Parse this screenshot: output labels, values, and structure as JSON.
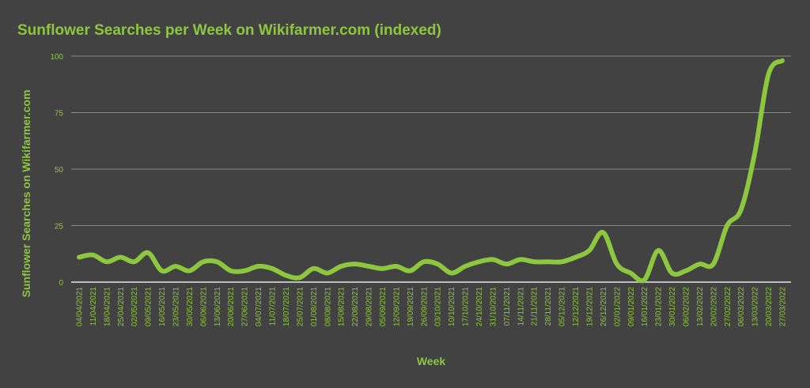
{
  "chart_data": {
    "type": "line",
    "title": "Sunflower Searches per Week on Wikifarmer.com (indexed)",
    "xlabel": "Week",
    "ylabel": "Sunflower Searches on Wikifarmer.com",
    "ylim": [
      0,
      100
    ],
    "yticks": [
      0,
      25,
      50,
      75,
      100
    ],
    "grid": true,
    "legend": "none",
    "color": "#8DC63F",
    "x": [
      "04/04/2021",
      "11/04/2021",
      "18/04/2021",
      "25/04/2021",
      "02/05/2021",
      "09/05/2021",
      "16/05/2021",
      "23/05/2021",
      "30/05/2021",
      "06/06/2021",
      "13/06/2021",
      "20/06/2021",
      "27/06/2021",
      "04/07/2021",
      "11/07/2021",
      "18/07/2021",
      "25/07/2021",
      "01/08/2021",
      "08/08/2021",
      "15/08/2021",
      "22/08/2021",
      "29/08/2021",
      "05/09/2021",
      "12/09/2021",
      "19/09/2021",
      "26/09/2021",
      "03/10/2021",
      "10/10/2021",
      "17/10/2021",
      "24/10/2021",
      "31/10/2021",
      "07/11/2021",
      "14/11/2021",
      "21/11/2021",
      "28/11/2021",
      "05/12/2021",
      "12/12/2021",
      "19/12/2021",
      "26/12/2021",
      "02/01/2022",
      "09/01/2022",
      "16/01/2022",
      "23/01/2022",
      "30/01/2022",
      "06/02/2022",
      "13/02/2022",
      "20/02/2022",
      "27/02/2022",
      "06/03/2022",
      "13/03/2022",
      "20/03/2022",
      "27/03/2022"
    ],
    "values": [
      11,
      12,
      9,
      11,
      9,
      13,
      5,
      7,
      5,
      9,
      9,
      5,
      5,
      7,
      6,
      3,
      2,
      6,
      4,
      7,
      8,
      7,
      6,
      7,
      5,
      9,
      8,
      4,
      7,
      9,
      10,
      8,
      10,
      9,
      9,
      9,
      11,
      14,
      22,
      8,
      4,
      1,
      14,
      4,
      5,
      8,
      8,
      25,
      32,
      57,
      92,
      98
    ]
  }
}
